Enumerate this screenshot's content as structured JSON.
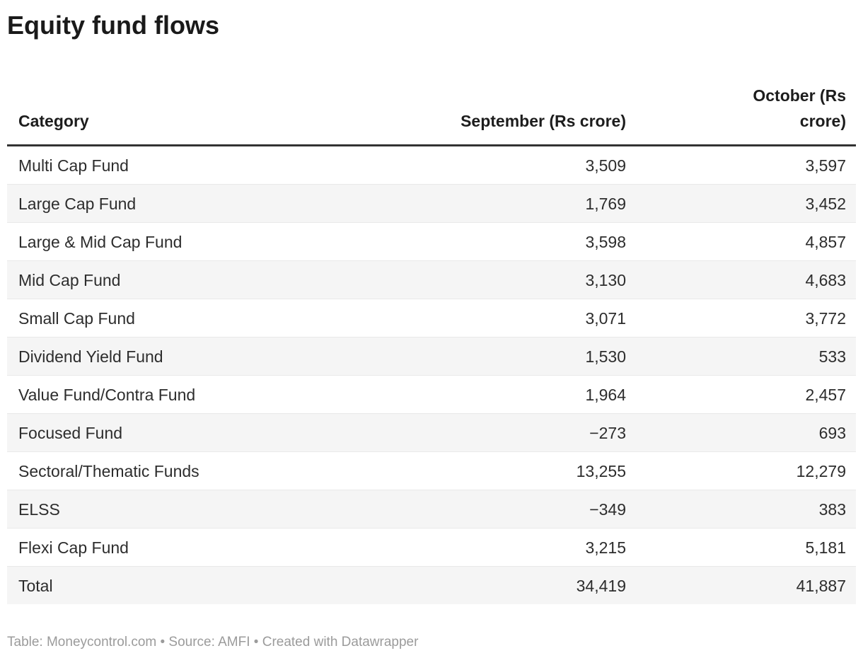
{
  "title": "Equity fund flows",
  "header": {
    "category": "Category",
    "september": "September (Rs crore)",
    "october": "October (Rs crore)"
  },
  "rows": [
    {
      "category": "Multi Cap Fund",
      "september": "3,509",
      "october": "3,597"
    },
    {
      "category": "Large Cap Fund",
      "september": "1,769",
      "october": "3,452"
    },
    {
      "category": "Large & Mid Cap Fund",
      "september": "3,598",
      "october": "4,857"
    },
    {
      "category": "Mid Cap Fund",
      "september": "3,130",
      "october": "4,683"
    },
    {
      "category": "Small Cap Fund",
      "september": "3,071",
      "october": "3,772"
    },
    {
      "category": "Dividend Yield Fund",
      "september": "1,530",
      "october": "533"
    },
    {
      "category": "Value Fund/Contra Fund",
      "september": "1,964",
      "october": "2,457"
    },
    {
      "category": "Focused Fund",
      "september": "−273",
      "october": "693"
    },
    {
      "category": "Sectoral/Thematic Funds",
      "september": "13,255",
      "october": "12,279"
    },
    {
      "category": "ELSS",
      "september": "−349",
      "october": "383"
    },
    {
      "category": "Flexi Cap Fund",
      "september": "3,215",
      "october": "5,181"
    },
    {
      "category": "Total",
      "september": "34,419",
      "october": "41,887"
    }
  ],
  "footer": "Table: Moneycontrol.com • Source: AMFI • Created with Datawrapper",
  "colors": {
    "title_text": "#1a1a1a",
    "body_text": "#2d2d2d",
    "header_border": "#323232",
    "row_stripe": "#f5f5f5",
    "row_border": "#e9e9e9",
    "footer_text": "#9b9b9b",
    "background": "#ffffff"
  },
  "chart_data": {
    "type": "table",
    "title": "Equity fund flows",
    "columns": [
      "Category",
      "September (Rs crore)",
      "October (Rs crore)"
    ],
    "rows": [
      [
        "Multi Cap Fund",
        3509,
        3597
      ],
      [
        "Large Cap Fund",
        1769,
        3452
      ],
      [
        "Large & Mid Cap Fund",
        3598,
        4857
      ],
      [
        "Mid Cap Fund",
        3130,
        4683
      ],
      [
        "Small Cap Fund",
        3071,
        3772
      ],
      [
        "Dividend Yield Fund",
        1530,
        533
      ],
      [
        "Value Fund/Contra Fund",
        1964,
        2457
      ],
      [
        "Focused Fund",
        -273,
        693
      ],
      [
        "Sectoral/Thematic Funds",
        13255,
        12279
      ],
      [
        "ELSS",
        -349,
        383
      ],
      [
        "Flexi Cap Fund",
        3215,
        5181
      ],
      [
        "Total",
        34419,
        41887
      ]
    ],
    "footer": "Table: Moneycontrol.com • Source: AMFI • Created with Datawrapper",
    "layout_hints": {
      "striped_rows": true,
      "stripe_on_even_rows": true,
      "numeric_columns_right_aligned": true
    }
  }
}
